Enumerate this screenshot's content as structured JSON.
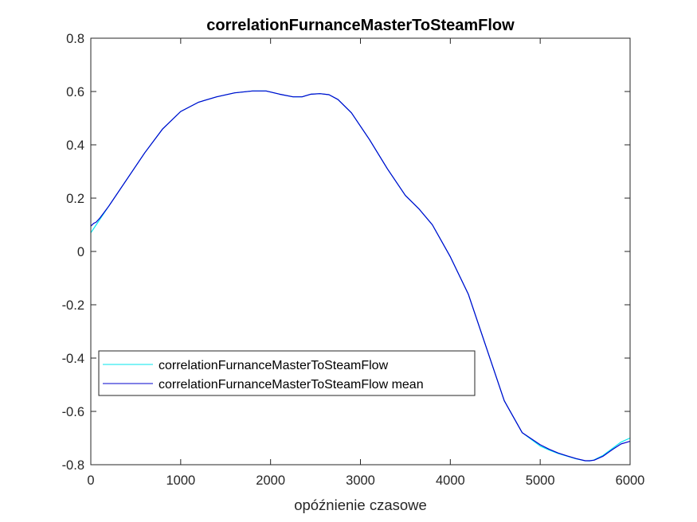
{
  "chart_data": {
    "type": "line",
    "title": "correlationFurnanceMasterToSteamFlow",
    "xlabel": "opóźnienie czasowe",
    "ylabel": "",
    "xlim": [
      0,
      6000
    ],
    "ylim": [
      -0.8,
      0.8
    ],
    "xticks": [
      0,
      1000,
      2000,
      3000,
      4000,
      5000,
      6000
    ],
    "yticks": [
      -0.8,
      -0.6,
      -0.4,
      -0.2,
      0,
      0.2,
      0.4,
      0.6,
      0.8
    ],
    "xtick_labels": [
      "0",
      "1000",
      "2000",
      "3000",
      "4000",
      "5000",
      "6000"
    ],
    "ytick_labels": [
      "-0.8",
      "-0.6",
      "-0.4",
      "-0.2",
      "0",
      "0.2",
      "0.4",
      "0.6",
      "0.8"
    ],
    "grid": false,
    "legend_position": "lower-left",
    "series": [
      {
        "name": "correlationFurnanceMasterToSteamFlow",
        "color": "#00e5ee",
        "x": [
          0,
          30,
          60,
          100,
          200,
          400,
          600,
          800,
          1000,
          1200,
          1400,
          1600,
          1800,
          1950,
          2100,
          2250,
          2350,
          2450,
          2550,
          2650,
          2750,
          2900,
          3100,
          3300,
          3500,
          3650,
          3800,
          4000,
          4200,
          4400,
          4600,
          4800,
          5000,
          5100,
          5200,
          5300,
          5400,
          5500,
          5550,
          5600,
          5700,
          5800,
          5900,
          6000
        ],
        "y": [
          0.07,
          0.085,
          0.1,
          0.12,
          0.17,
          0.27,
          0.37,
          0.46,
          0.525,
          0.56,
          0.58,
          0.595,
          0.602,
          0.602,
          0.59,
          0.58,
          0.58,
          0.59,
          0.592,
          0.588,
          0.57,
          0.52,
          0.42,
          0.31,
          0.21,
          0.16,
          0.1,
          -0.02,
          -0.16,
          -0.36,
          -0.56,
          -0.68,
          -0.73,
          -0.745,
          -0.758,
          -0.768,
          -0.778,
          -0.785,
          -0.786,
          -0.782,
          -0.765,
          -0.74,
          -0.715,
          -0.7
        ]
      },
      {
        "name": "correlationFurnanceMasterToSteamFlow mean",
        "color": "#0000cd",
        "x": [
          0,
          30,
          60,
          100,
          200,
          400,
          600,
          800,
          1000,
          1200,
          1400,
          1600,
          1800,
          1950,
          2100,
          2250,
          2350,
          2450,
          2550,
          2650,
          2750,
          2900,
          3100,
          3300,
          3500,
          3650,
          3800,
          4000,
          4200,
          4400,
          4600,
          4800,
          5000,
          5100,
          5200,
          5300,
          5400,
          5500,
          5550,
          5600,
          5700,
          5800,
          5900,
          6000
        ],
        "y": [
          0.095,
          0.105,
          0.11,
          0.125,
          0.17,
          0.27,
          0.37,
          0.46,
          0.525,
          0.56,
          0.58,
          0.595,
          0.602,
          0.602,
          0.59,
          0.58,
          0.58,
          0.59,
          0.592,
          0.588,
          0.57,
          0.52,
          0.42,
          0.31,
          0.21,
          0.16,
          0.1,
          -0.02,
          -0.16,
          -0.36,
          -0.56,
          -0.68,
          -0.725,
          -0.742,
          -0.756,
          -0.767,
          -0.777,
          -0.785,
          -0.785,
          -0.783,
          -0.768,
          -0.744,
          -0.722,
          -0.712
        ]
      }
    ]
  }
}
